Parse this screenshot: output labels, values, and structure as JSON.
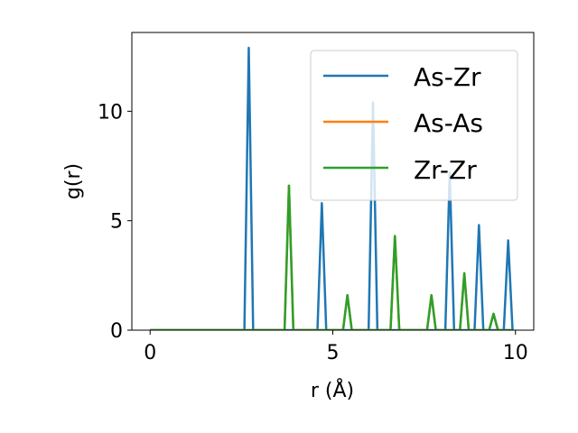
{
  "chart_data": {
    "type": "line",
    "title": "",
    "xlabel": "r (Å)",
    "ylabel": "g(r)",
    "xlim": [
      -0.5,
      10.5
    ],
    "ylim": [
      0,
      13.6
    ],
    "xticks": [
      0,
      5,
      10
    ],
    "yticks": [
      0,
      5,
      10
    ],
    "grid": false,
    "legend_position": "top-right",
    "series": [
      {
        "name": "As-Zr",
        "color": "#1f77b4",
        "peaks": [
          {
            "r": 2.7,
            "g": 12.9
          },
          {
            "r": 4.7,
            "g": 5.8
          },
          {
            "r": 6.1,
            "g": 10.4
          },
          {
            "r": 8.2,
            "g": 7.2
          },
          {
            "r": 9.0,
            "g": 4.8
          },
          {
            "r": 9.8,
            "g": 4.1
          }
        ]
      },
      {
        "name": "As-As",
        "color": "#ff7f0e",
        "peaks": [
          {
            "r": 3.8,
            "g": 6.6
          },
          {
            "r": 5.4,
            "g": 1.6
          },
          {
            "r": 6.7,
            "g": 4.3
          },
          {
            "r": 7.7,
            "g": 1.6
          },
          {
            "r": 8.6,
            "g": 2.6
          },
          {
            "r": 9.4,
            "g": 0.75
          }
        ]
      },
      {
        "name": "Zr-Zr",
        "color": "#2ca02c",
        "peaks": [
          {
            "r": 3.8,
            "g": 6.6
          },
          {
            "r": 5.4,
            "g": 1.6
          },
          {
            "r": 6.7,
            "g": 4.3
          },
          {
            "r": 7.7,
            "g": 1.6
          },
          {
            "r": 8.6,
            "g": 2.6
          },
          {
            "r": 9.4,
            "g": 0.75
          }
        ]
      }
    ],
    "r_range": [
      0,
      9.9
    ],
    "peak_halfwidth": 0.12
  }
}
